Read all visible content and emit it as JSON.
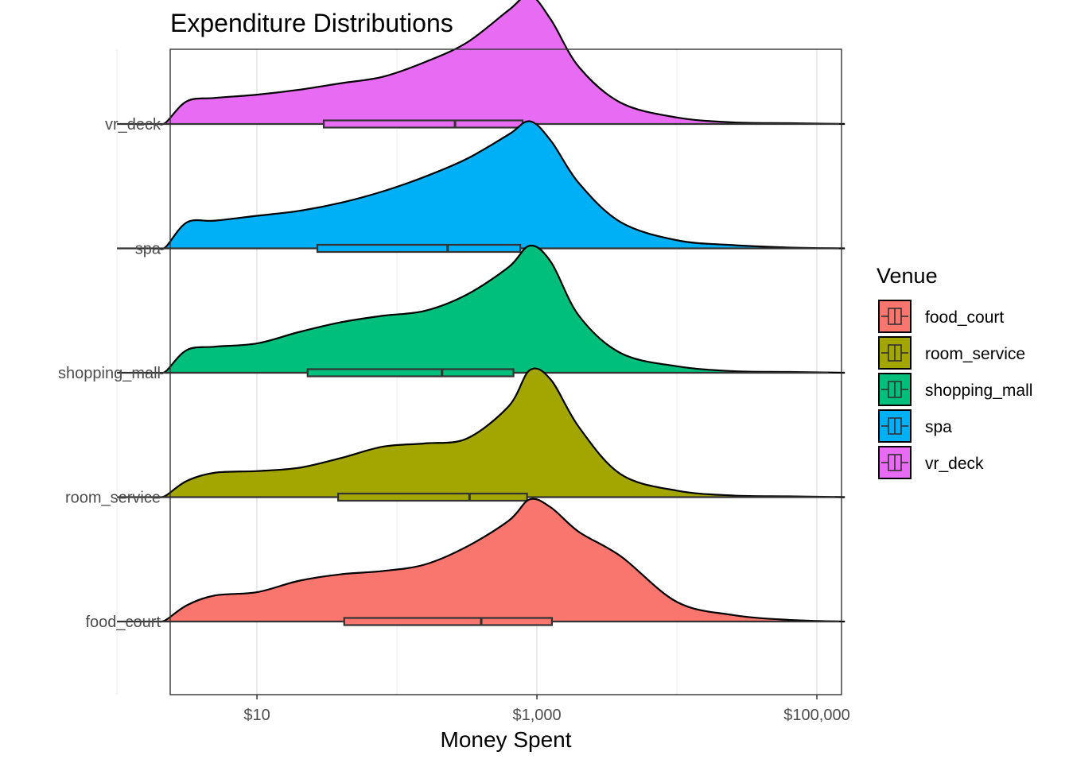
{
  "chart_data": {
    "type": "ridgeline",
    "title": "Expenditure Distributions",
    "xlabel": "Money Spent",
    "ylabel": "",
    "x_scale": "log10",
    "xlim": [
      2.4,
      150000
    ],
    "x_ticks": [
      {
        "value": 10,
        "label": "$10"
      },
      {
        "value": 1000,
        "label": "$1,000"
      },
      {
        "value": 100000,
        "label": "$100,000"
      }
    ],
    "x_minor_gridlines": [
      1,
      100,
      10000
    ],
    "grid": true,
    "legend": {
      "title": "Venue",
      "position": "right",
      "entries": [
        "food_court",
        "room_service",
        "shopping_mall",
        "spa",
        "vr_deck"
      ]
    },
    "colors": {
      "food_court": "#F8766D",
      "room_service": "#A3A500",
      "shopping_mall": "#00BF7D",
      "spa": "#00B0F6",
      "vr_deck": "#E76BF3"
    },
    "categories": [
      "food_court",
      "room_service",
      "shopping_mall",
      "spa",
      "vr_deck"
    ],
    "series": [
      {
        "name": "food_court",
        "density": {
          "x": [
            0.3,
            0.35,
            0.5,
            0.7,
            1.0,
            1.3,
            1.6,
            1.9,
            2.2,
            2.5,
            2.8,
            2.95,
            3.1,
            3.3,
            3.6,
            4.0,
            4.4,
            4.8,
            5.2
          ],
          "y": [
            0,
            0.01,
            0.1,
            0.16,
            0.18,
            0.25,
            0.29,
            0.31,
            0.35,
            0.46,
            0.62,
            0.75,
            0.7,
            0.55,
            0.4,
            0.12,
            0.04,
            0.01,
            0
          ]
        },
        "box": {
          "min": 1,
          "q1": 42,
          "median": 400,
          "q3": 1280,
          "max": 275000
        }
      },
      {
        "name": "room_service",
        "density": {
          "x": [
            0.3,
            0.35,
            0.5,
            0.7,
            1.0,
            1.3,
            1.6,
            1.9,
            2.2,
            2.5,
            2.8,
            2.95,
            3.1,
            3.3,
            3.6,
            4.0,
            4.4,
            4.8,
            5.2
          ],
          "y": [
            0,
            0.01,
            0.1,
            0.15,
            0.16,
            0.18,
            0.24,
            0.31,
            0.33,
            0.36,
            0.56,
            0.78,
            0.72,
            0.43,
            0.14,
            0.04,
            0.01,
            0.005,
            0
          ]
        },
        "box": {
          "min": 1,
          "q1": 38,
          "median": 330,
          "q3": 850,
          "max": 135000
        }
      },
      {
        "name": "shopping_mall",
        "density": {
          "x": [
            0.3,
            0.35,
            0.5,
            0.7,
            1.0,
            1.3,
            1.6,
            1.9,
            2.2,
            2.5,
            2.8,
            2.95,
            3.1,
            3.3,
            3.6,
            4.0,
            4.4,
            4.8,
            5.2
          ],
          "y": [
            0,
            0.01,
            0.14,
            0.16,
            0.18,
            0.25,
            0.31,
            0.35,
            0.38,
            0.48,
            0.65,
            0.78,
            0.68,
            0.35,
            0.12,
            0.04,
            0.01,
            0.005,
            0
          ]
        },
        "box": {
          "min": 1,
          "q1": 23,
          "median": 210,
          "q3": 680,
          "max": 120000
        }
      },
      {
        "name": "spa",
        "density": {
          "x": [
            0.3,
            0.35,
            0.5,
            0.7,
            1.0,
            1.3,
            1.6,
            1.9,
            2.2,
            2.5,
            2.8,
            2.95,
            3.1,
            3.3,
            3.6,
            4.0,
            4.4,
            4.8,
            5.2
          ],
          "y": [
            0,
            0.01,
            0.16,
            0.17,
            0.2,
            0.23,
            0.28,
            0.35,
            0.44,
            0.55,
            0.7,
            0.78,
            0.66,
            0.4,
            0.16,
            0.05,
            0.02,
            0.005,
            0
          ]
        },
        "box": {
          "min": 1,
          "q1": 27,
          "median": 230,
          "q3": 760,
          "max": 215000
        }
      },
      {
        "name": "vr_deck",
        "density": {
          "x": [
            0.3,
            0.35,
            0.5,
            0.7,
            1.0,
            1.3,
            1.6,
            1.9,
            2.2,
            2.5,
            2.8,
            2.95,
            3.1,
            3.3,
            3.6,
            4.0,
            4.4,
            4.8,
            5.2
          ],
          "y": [
            0,
            0.01,
            0.14,
            0.16,
            0.18,
            0.21,
            0.25,
            0.29,
            0.38,
            0.5,
            0.7,
            0.79,
            0.64,
            0.35,
            0.13,
            0.04,
            0.01,
            0.005,
            0
          ]
        },
        "box": {
          "min": 1,
          "q1": 30,
          "median": 260,
          "q3": 790,
          "max": 230000
        }
      }
    ]
  }
}
